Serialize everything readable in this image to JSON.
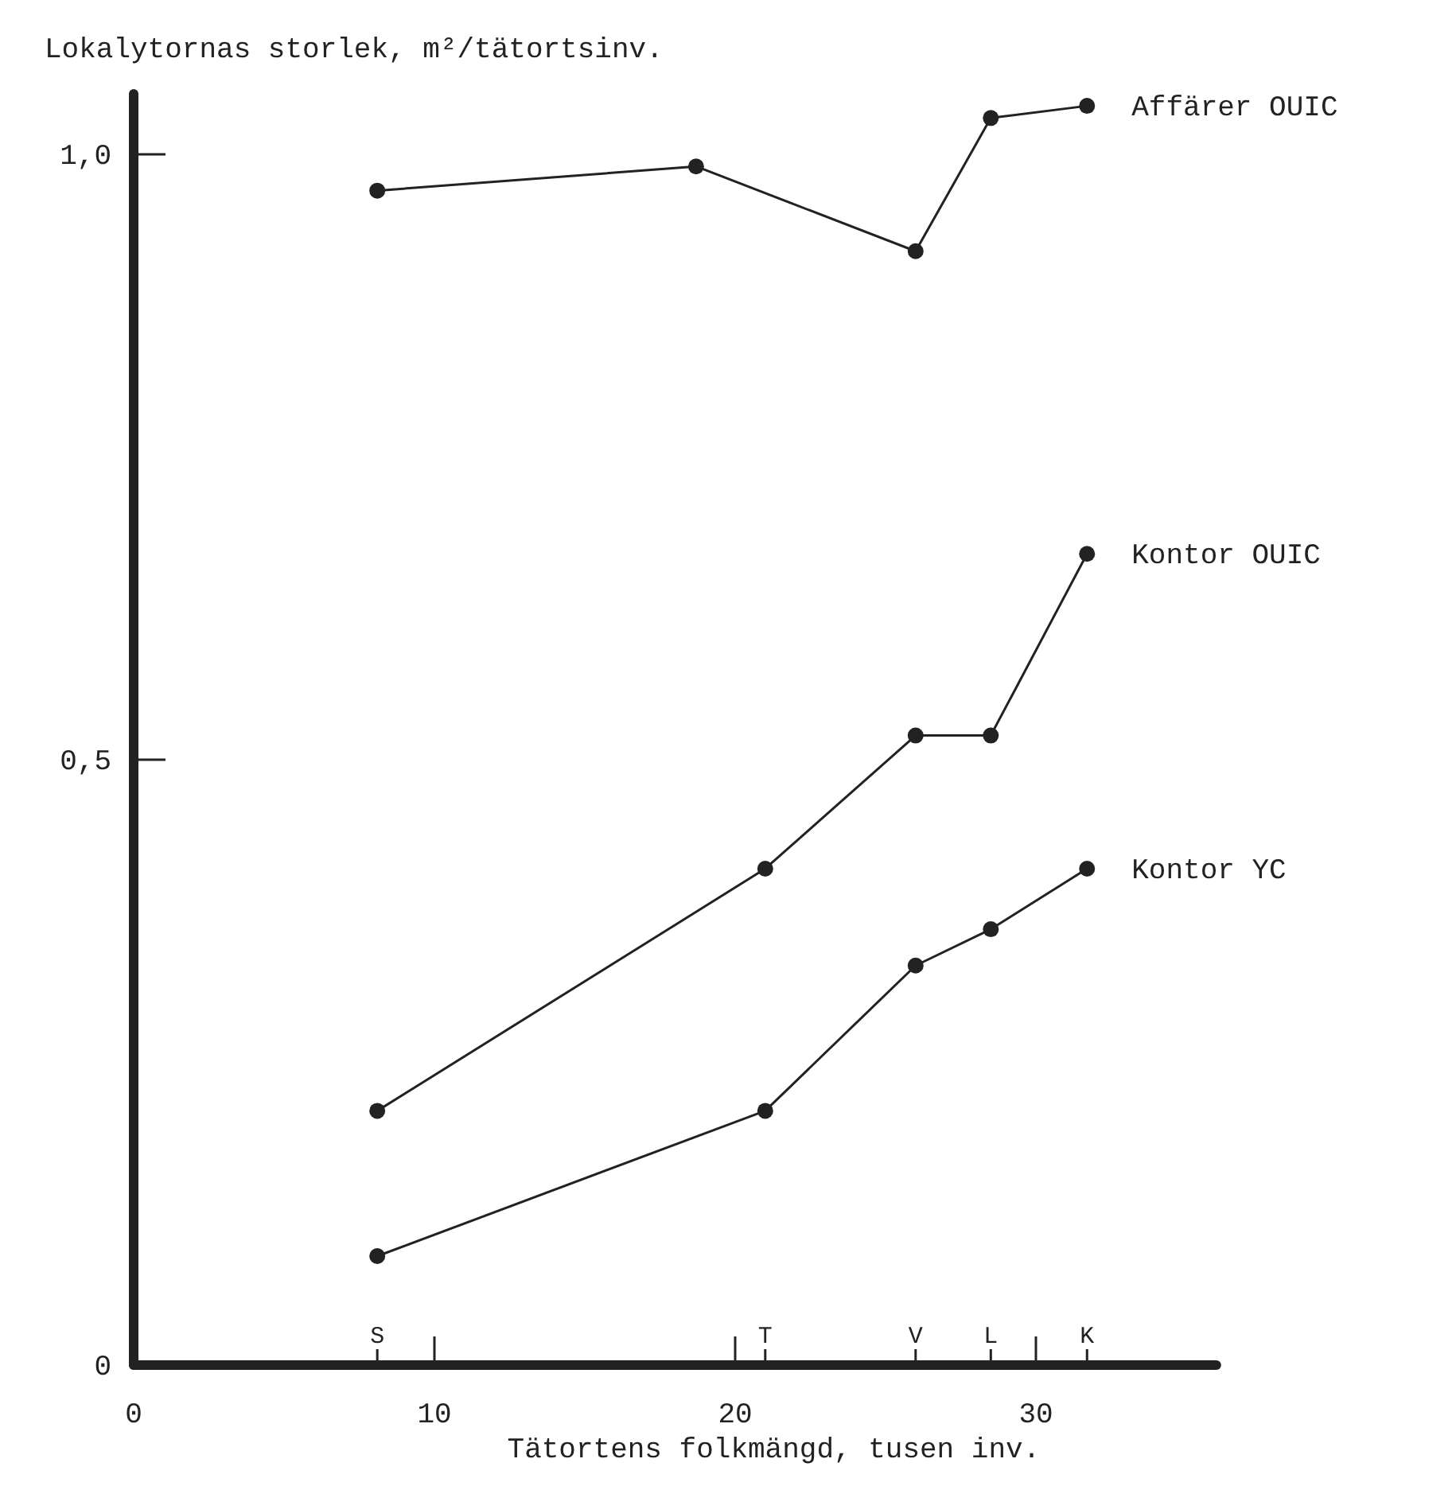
{
  "chart_data": {
    "type": "line",
    "ylabel": "Lokalytornas storlek, m²/tätortsinv.",
    "xlabel": "Tätortens folkmängd, tusen inv.",
    "xlim": [
      0,
      36
    ],
    "ylim": [
      0,
      1.05
    ],
    "xticks": [
      0,
      10,
      20,
      30
    ],
    "annotations": [
      "S",
      "T",
      "V",
      "L",
      "K"
    ],
    "yticks": [
      {
        "value": 0,
        "label": "0"
      },
      {
        "value": 0.5,
        "label": "0,5"
      },
      {
        "value": 1,
        "label": "1,0"
      }
    ],
    "marker": "circle",
    "grid": false,
    "legend": false,
    "series": [
      {
        "name": "Affärer OUIC",
        "color": "#222222",
        "x": [
          8.1,
          18.7,
          26,
          28.5,
          31.7
        ],
        "values": [
          0.97,
          0.99,
          0.92,
          1.03,
          1.04
        ]
      },
      {
        "name": "Kontor OUIC",
        "color": "#222222",
        "x": [
          8.1,
          21,
          26,
          28.5,
          31.7
        ],
        "values": [
          0.21,
          0.41,
          0.52,
          0.52,
          0.67
        ]
      },
      {
        "name": "Kontor YC",
        "color": "#222222",
        "x": [
          8.1,
          21,
          26,
          28.5,
          31.7
        ],
        "values": [
          0.09,
          0.21,
          0.33,
          0.36,
          0.41
        ]
      }
    ]
  }
}
